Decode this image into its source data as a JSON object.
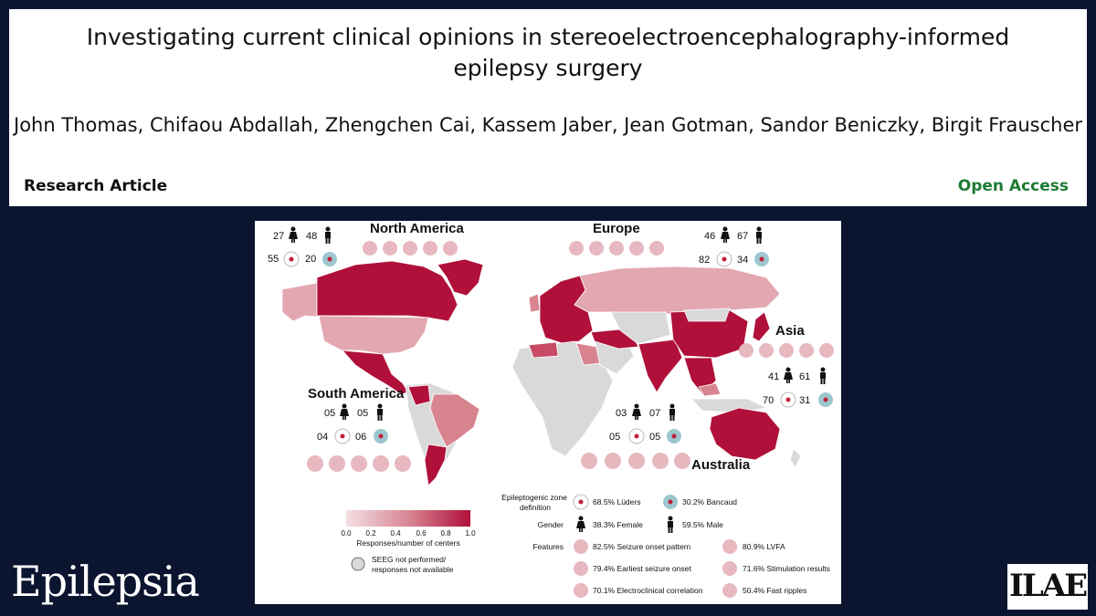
{
  "header": {
    "title_line1": "Investigating current clinical opinions in stereoelectroencephalography-informed",
    "title_line2": "epilepsy surgery",
    "authors": "John Thomas, Chifaou Abdallah, Zhengchen Cai, Kassem Jaber, Jean Gotman, Sandor Beniczky, Birgit Frauscher",
    "article_type": "Research Article",
    "access": "Open Access"
  },
  "figure": {
    "regions": [
      {
        "name": "North America",
        "female": "27",
        "male": "48",
        "luders": "55",
        "bancaud": "20"
      },
      {
        "name": "Europe",
        "female": "46",
        "male": "67",
        "luders": "82",
        "bancaud": "34"
      },
      {
        "name": "Asia",
        "female": "41",
        "male": "61",
        "luders": "70",
        "bancaud": "31"
      },
      {
        "name": "South America",
        "female": "05",
        "male": "05",
        "luders": "04",
        "bancaud": "06"
      },
      {
        "name": "Australia",
        "female": "03",
        "male": "07",
        "luders": "05",
        "bancaud": "05"
      }
    ],
    "colorbar": {
      "ticks": [
        "0.0",
        "0.2",
        "0.4",
        "0.6",
        "0.8",
        "1.0"
      ],
      "label": "Responses/number of centers",
      "color_low": "#f3dfe2",
      "color_high": "#b0103a"
    },
    "not_available_line1": "SEEG not performed/",
    "not_available_line2": "responses not available",
    "legend": {
      "ez_label_line1": "Epileptogenic zone",
      "ez_label_line2": "definition",
      "luders": "68.5% Lüders",
      "bancaud": "30.2% Bancaud",
      "gender_label": "Gender",
      "female": "38.3% Female",
      "male": "59.5% Male",
      "features_label": "Features",
      "features": [
        "82.5% Seizure onset pattern",
        "80.9% LVFA",
        "79.4% Earliest seizure onset",
        "71.6% Stimulation results",
        "70.1% Electroclinical correlation",
        "50.4% Fast ripples"
      ]
    }
  },
  "footer": {
    "journal": "Epilepsia",
    "society_logo": "ILAE"
  }
}
